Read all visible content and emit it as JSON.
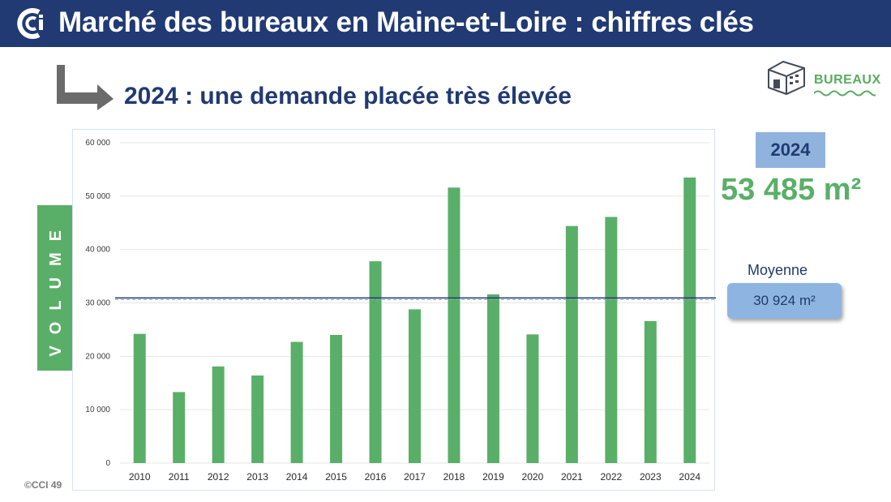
{
  "header": {
    "title": "Marché des bureaux en Maine-et-Loire : chiffres clés"
  },
  "subtitle": "2024 : une demande placée très élevée",
  "badge": {
    "label": "BUREAUX"
  },
  "axis_side_label": "VOLUME",
  "highlight": {
    "year": "2024",
    "value": "53 485 m²"
  },
  "average": {
    "label": "Moyenne",
    "value": "30 924 m²"
  },
  "copyright": "©CCI 49",
  "colors": {
    "header_bg": "#213a73",
    "bar": "#5aaf68",
    "badge_bg": "#90b3dd",
    "average_line": "#213a73"
  },
  "chart_data": {
    "type": "bar",
    "title": "",
    "xlabel": "",
    "ylabel": "VOLUME",
    "categories": [
      "2010",
      "2011",
      "2012",
      "2013",
      "2014",
      "2015",
      "2016",
      "2017",
      "2018",
      "2019",
      "2020",
      "2021",
      "2022",
      "2023",
      "2024"
    ],
    "values": [
      24200,
      13300,
      18100,
      16400,
      22700,
      24000,
      37800,
      28800,
      51600,
      31600,
      24100,
      44400,
      46100,
      26600,
      53485
    ],
    "ylim": [
      0,
      60000
    ],
    "yticks": [
      0,
      10000,
      20000,
      30000,
      40000,
      50000,
      60000
    ],
    "ytick_labels": [
      "0",
      "10 000",
      "20 000",
      "30 000",
      "40 000",
      "50 000",
      "60 000"
    ],
    "average": 30924,
    "grid": true
  }
}
